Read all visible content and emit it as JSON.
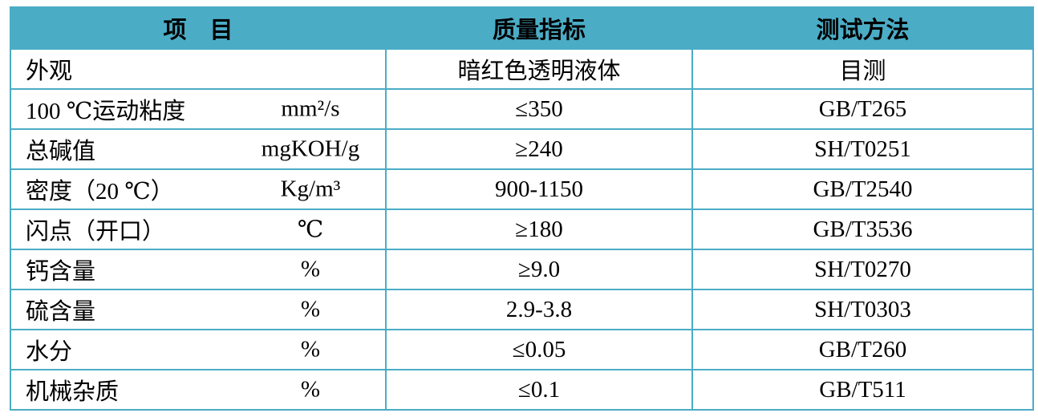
{
  "table": {
    "header": [
      "项　目",
      "质量指标",
      "测试方法"
    ],
    "rows": [
      {
        "item": "外观",
        "unit": null,
        "spec": "暗红色透明液体",
        "method": "目测"
      },
      {
        "item": "100 ℃运动粘度",
        "unit": "mm²/s",
        "spec": "≤350",
        "method": "GB/T265"
      },
      {
        "item": "总碱值",
        "unit": "mgKOH/g",
        "spec": "≥240",
        "method": "SH/T0251"
      },
      {
        "item": "密度（20 ℃）",
        "unit": "Kg/m³",
        "spec": "900-1150",
        "method": "GB/T2540"
      },
      {
        "item": "闪点（开口）",
        "unit": "℃",
        "spec": "≥180",
        "method": "GB/T3536"
      },
      {
        "item": "钙含量",
        "unit": "%",
        "spec": "≥9.0",
        "method": "SH/T0270"
      },
      {
        "item": "硫含量",
        "unit": "%",
        "spec": "2.9-3.8",
        "method": "SH/T0303"
      },
      {
        "item": "水分",
        "unit": "%",
        "spec": "≤0.05",
        "method": "GB/T260"
      },
      {
        "item": "机械杂质",
        "unit": "%",
        "spec": "≤0.1",
        "method": "GB/T511"
      }
    ]
  }
}
